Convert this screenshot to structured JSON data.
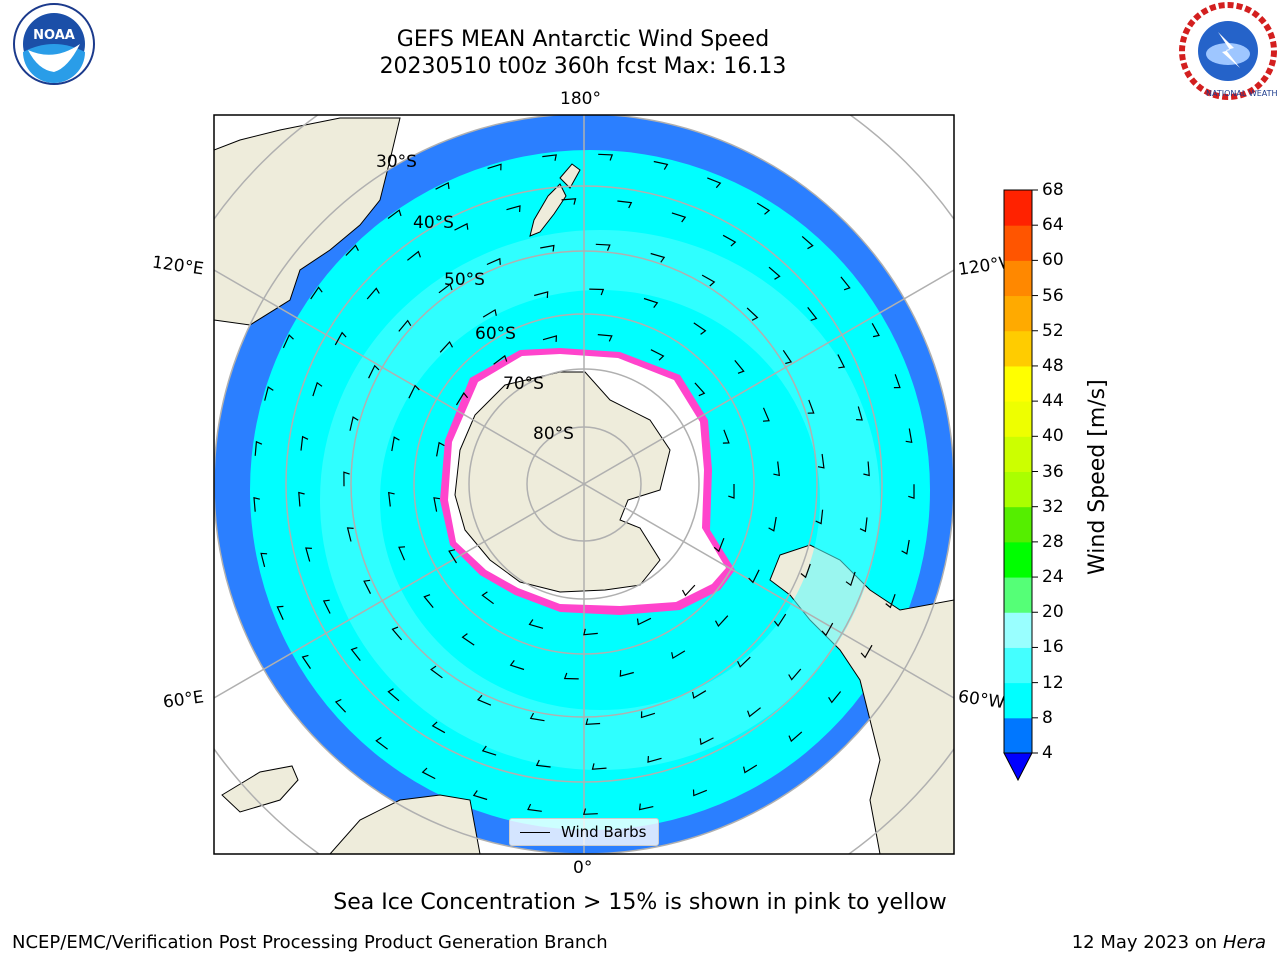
{
  "title": {
    "line1": "GEFS MEAN Antarctic Wind Speed",
    "line2": "20230510 t00z 360h fcst   Max: 16.13"
  },
  "logos": {
    "noaa": "NOAA",
    "nws": "NATIONAL WEATHER SERVICE"
  },
  "map": {
    "projection": "south-polar-stereographic",
    "longitude_labels": {
      "top": "180°",
      "bottom": "0°",
      "left_upper": "120°E",
      "left_lower": "60°E",
      "right_upper": "120°W",
      "right_lower": "60°W"
    },
    "latitude_labels": [
      "30°S",
      "40°S",
      "50°S",
      "60°S",
      "70°S",
      "80°S"
    ],
    "legend_label": "Wind Barbs",
    "colors": {
      "land": "#eeecdb",
      "ocean_fill": "#00ffff",
      "ice_edge": "#ff33cc",
      "ice": "#ffffff",
      "grid": "#b0b0b0"
    }
  },
  "colorbar": {
    "label": "Wind Speed [m/s]",
    "ticks": [
      "68",
      "64",
      "60",
      "56",
      "52",
      "48",
      "44",
      "40",
      "36",
      "32",
      "28",
      "24",
      "20",
      "16",
      "12",
      "8",
      "4"
    ],
    "colors": [
      "#0000ff",
      "#0077ff",
      "#00ffff",
      "#44ffff",
      "#99ffff",
      "#55ff77",
      "#00ff00",
      "#55ee00",
      "#aaff00",
      "#ccff00",
      "#eeff00",
      "#ffff00",
      "#ffcc00",
      "#ffaa00",
      "#ff8800",
      "#ff5500",
      "#ff2200",
      "#ff0000"
    ]
  },
  "footnote": "Sea Ice Concentration > 15% is shown in pink to yellow",
  "credit": "NCEP/EMC/Verification Post Processing Product Generation Branch",
  "date": {
    "text": "12 May 2023 on",
    "host": "Hera"
  }
}
